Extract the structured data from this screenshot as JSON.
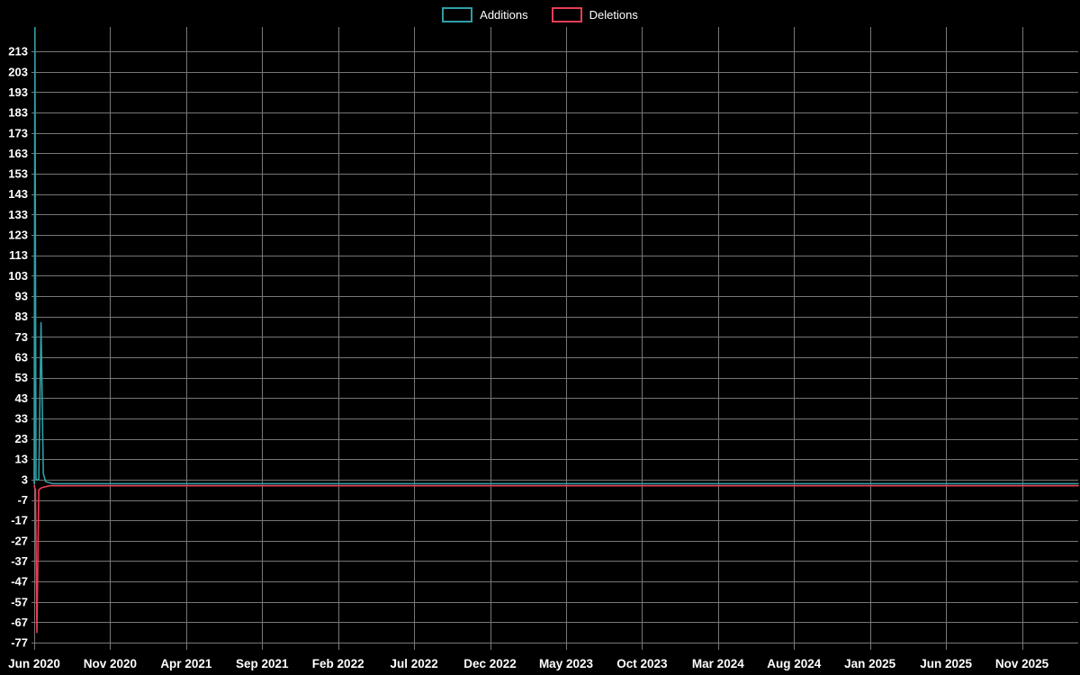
{
  "legend": {
    "additions_label": "Additions",
    "deletions_label": "Deletions"
  },
  "chart_data": {
    "type": "line",
    "title": "",
    "xlabel": "",
    "ylabel": "",
    "grid": true,
    "legend_position": "top-center",
    "colors": {
      "additions": "#2f9ea6",
      "deletions": "#e83e55",
      "grid": "#777777",
      "text": "#ffffff",
      "background": "#000000"
    },
    "x_axis": {
      "unit": "months_since_jun_2020",
      "range": [
        0,
        68.7
      ],
      "ticks": [
        {
          "m": 0,
          "label": "Jun 2020"
        },
        {
          "m": 5,
          "label": "Nov 2020"
        },
        {
          "m": 10,
          "label": "Apr 2021"
        },
        {
          "m": 15,
          "label": "Sep 2021"
        },
        {
          "m": 20,
          "label": "Feb 2022"
        },
        {
          "m": 25,
          "label": "Jul 2022"
        },
        {
          "m": 30,
          "label": "Dec 2022"
        },
        {
          "m": 35,
          "label": "May 2023"
        },
        {
          "m": 40,
          "label": "Oct 2023"
        },
        {
          "m": 45,
          "label": "Mar 2024"
        },
        {
          "m": 50,
          "label": "Aug 2024"
        },
        {
          "m": 55,
          "label": "Jan 2025"
        },
        {
          "m": 60,
          "label": "Jun 2025"
        },
        {
          "m": 65,
          "label": "Nov 2025"
        }
      ]
    },
    "y_axis": {
      "range": [
        -80.5,
        225
      ],
      "ticks": [
        213,
        203,
        193,
        183,
        173,
        163,
        153,
        143,
        133,
        123,
        113,
        103,
        93,
        83,
        73,
        63,
        53,
        43,
        33,
        23,
        13,
        3,
        -7,
        -17,
        -27,
        -37,
        -47,
        -57,
        -67,
        -77
      ]
    },
    "series": [
      {
        "name": "Additions",
        "color_key": "additions",
        "points": [
          [
            0,
            1
          ],
          [
            0.05,
            225
          ],
          [
            0.12,
            3
          ],
          [
            0.3,
            3
          ],
          [
            0.45,
            80
          ],
          [
            0.6,
            6
          ],
          [
            0.75,
            2
          ],
          [
            1.2,
            1
          ],
          [
            68.7,
            1
          ]
        ]
      },
      {
        "name": "Deletions",
        "color_key": "deletions",
        "points": [
          [
            0,
            0
          ],
          [
            0.08,
            -2
          ],
          [
            0.18,
            -72
          ],
          [
            0.3,
            -2
          ],
          [
            0.5,
            -1
          ],
          [
            1.0,
            0
          ],
          [
            68.7,
            0
          ]
        ]
      }
    ]
  }
}
